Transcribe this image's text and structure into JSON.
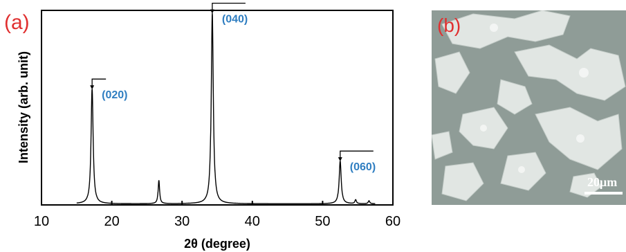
{
  "panel_a_label": "(a)",
  "panel_b_label": "(b)",
  "scale_bar_label": "20μm",
  "colors": {
    "peak_label": "#2f7ec1",
    "panel_label": "#e03030",
    "sem_background": "#8f9c97",
    "flakes": "#e8ecea"
  },
  "chart_data": {
    "type": "line",
    "xlabel": "2θ (degree)",
    "ylabel": "Intensity (arb. unit)",
    "xlim": [
      10,
      60
    ],
    "ylim": [
      0,
      100
    ],
    "xticks": [
      10,
      20,
      30,
      40,
      50,
      60
    ],
    "y_tick_labels_shown": false,
    "grid": false,
    "peaks": [
      {
        "x": 17.2,
        "height": 59,
        "width": 0.35
      },
      {
        "x": 26.7,
        "height": 12,
        "width": 0.25
      },
      {
        "x": 34.3,
        "height": 98,
        "width": 0.35
      },
      {
        "x": 52.5,
        "height": 22,
        "width": 0.35
      },
      {
        "x": 54.7,
        "height": 2,
        "width": 0.25
      },
      {
        "x": 56.6,
        "height": 1.5,
        "width": 0.25
      }
    ],
    "annotations": [
      {
        "label": "(020)",
        "x": 17.2,
        "y": 59
      },
      {
        "label": "(040)",
        "x": 34.3,
        "y": 98
      },
      {
        "label": "(060)",
        "x": 52.5,
        "y": 22
      }
    ]
  }
}
